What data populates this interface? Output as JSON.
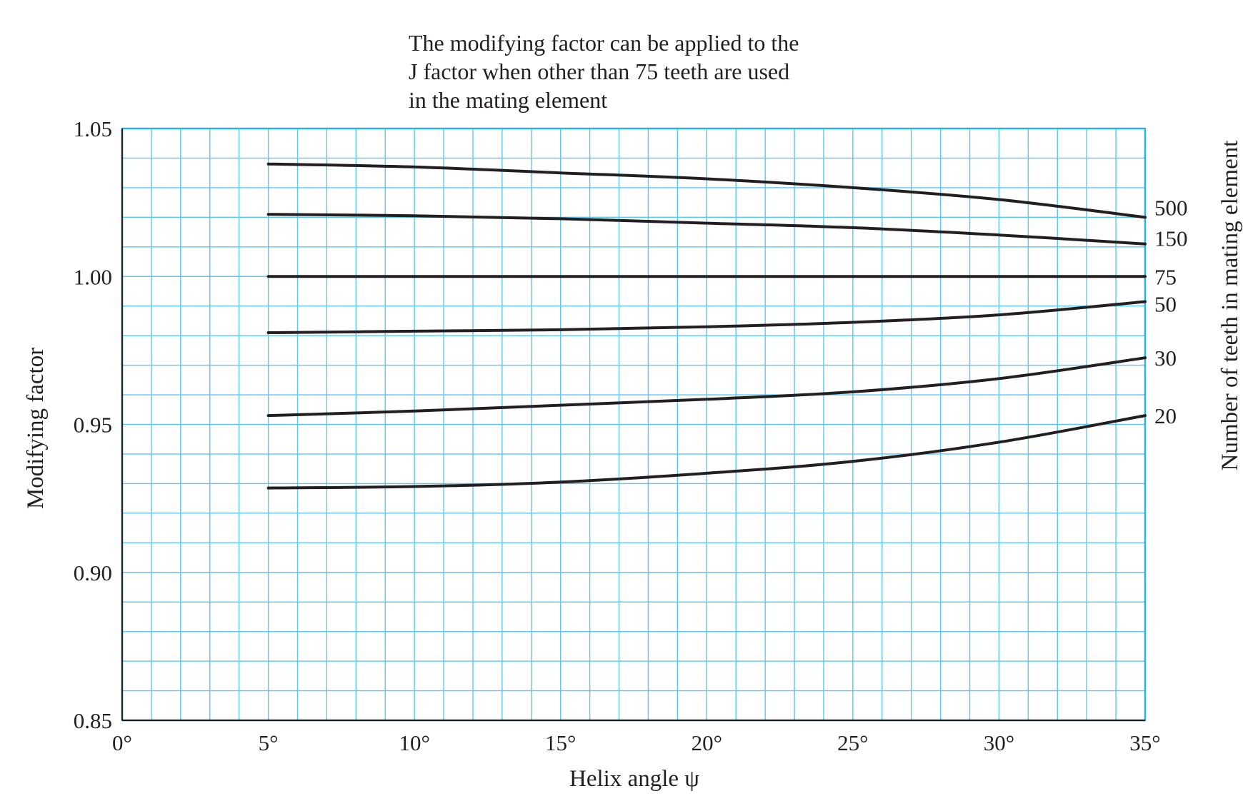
{
  "chart_data": {
    "type": "line",
    "annotation": [
      "The modifying factor can be applied to the",
      "J factor when other than 75 teeth are used",
      "in the mating element"
    ],
    "xlabel": "Helix angle ψ",
    "ylabel": "Modifying factor",
    "y2label": "Number of teeth in mating element",
    "xlim": [
      0,
      35
    ],
    "ylim": [
      0.85,
      1.05
    ],
    "x_ticks": [
      0,
      5,
      10,
      15,
      20,
      25,
      30,
      35
    ],
    "x_tick_labels": [
      "0°",
      "5°",
      "10°",
      "15°",
      "20°",
      "25°",
      "30°",
      "35°"
    ],
    "y_ticks": [
      0.85,
      0.9,
      0.95,
      1.0,
      1.05
    ],
    "y_tick_labels": [
      "0.85",
      "0.90",
      "0.95",
      "1.00",
      "1.05"
    ],
    "grid": true,
    "grid_minor_x_step": 1,
    "grid_minor_y_step": 0.01,
    "grid_color": "#5cc8ec",
    "line_color": "#231f20",
    "series": [
      {
        "name": "500",
        "x": [
          5,
          10,
          15,
          20,
          25,
          30,
          35
        ],
        "values": [
          1.038,
          1.037,
          1.035,
          1.033,
          1.03,
          1.026,
          1.02
        ]
      },
      {
        "name": "150",
        "x": [
          5,
          10,
          15,
          20,
          25,
          30,
          35
        ],
        "values": [
          1.021,
          1.0205,
          1.0195,
          1.018,
          1.0165,
          1.014,
          1.011
        ]
      },
      {
        "name": "75",
        "x": [
          5,
          10,
          15,
          20,
          25,
          30,
          35
        ],
        "values": [
          1.0,
          1.0,
          1.0,
          1.0,
          1.0,
          1.0,
          1.0
        ]
      },
      {
        "name": "50",
        "x": [
          5,
          10,
          15,
          20,
          25,
          30,
          35
        ],
        "values": [
          0.981,
          0.9815,
          0.982,
          0.983,
          0.9845,
          0.987,
          0.9915
        ]
      },
      {
        "name": "30",
        "x": [
          5,
          10,
          15,
          20,
          25,
          30,
          35
        ],
        "values": [
          0.953,
          0.9545,
          0.9565,
          0.9585,
          0.961,
          0.9655,
          0.9725
        ]
      },
      {
        "name": "20",
        "x": [
          5,
          10,
          15,
          20,
          25,
          30,
          35
        ],
        "values": [
          0.9285,
          0.929,
          0.9305,
          0.9335,
          0.9375,
          0.944,
          0.953
        ]
      }
    ]
  }
}
